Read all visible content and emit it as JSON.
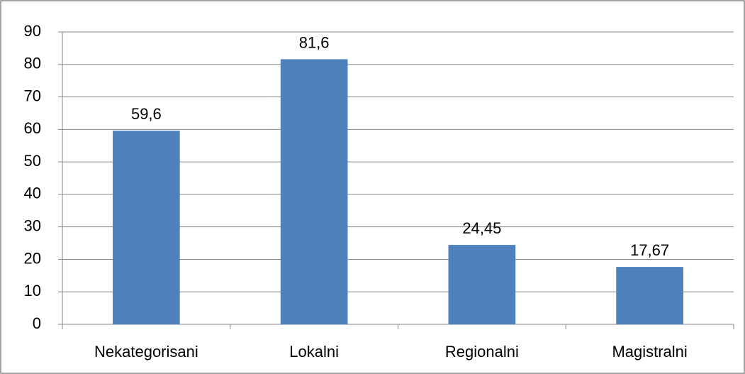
{
  "chart_data": {
    "type": "bar",
    "categories": [
      "Nekategorisani",
      "Lokalni",
      "Regionalni",
      "Magistralni"
    ],
    "values": [
      59.6,
      81.6,
      24.45,
      17.67
    ],
    "value_labels": [
      "59,6",
      "81,6",
      "24,45",
      "17,67"
    ],
    "color": "#4f81bd",
    "ylim": [
      0,
      90
    ],
    "yticks": [
      0,
      10,
      20,
      30,
      40,
      50,
      60,
      70,
      80,
      90
    ],
    "grid": true
  }
}
